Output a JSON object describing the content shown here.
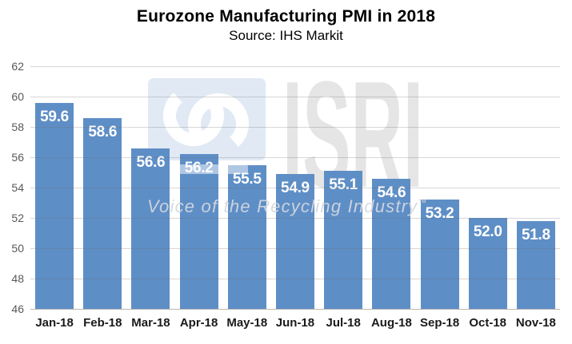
{
  "title": "Eurozone Manufacturing PMI in 2018",
  "subtitle": "Source: IHS Markit",
  "chart_data": {
    "type": "bar",
    "title": "Eurozone Manufacturing PMI in 2018",
    "subtitle": "Source: IHS Markit",
    "categories": [
      "Jan-18",
      "Feb-18",
      "Mar-18",
      "Apr-18",
      "May-18",
      "Jun-18",
      "Jul-18",
      "Aug-18",
      "Sep-18",
      "Oct-18",
      "Nov-18"
    ],
    "values": [
      59.6,
      58.6,
      56.6,
      56.2,
      55.5,
      54.9,
      55.1,
      54.6,
      53.2,
      52.0,
      51.8
    ],
    "data_labels": [
      "59.6",
      "58.6",
      "56.6",
      "56.2",
      "55.5",
      "54.9",
      "55.1",
      "54.6",
      "53.2",
      "52.0",
      "51.8"
    ],
    "xlabel": "",
    "ylabel": "",
    "ylim": [
      46,
      62
    ],
    "yticks": [
      46,
      48,
      50,
      52,
      54,
      56,
      58,
      60,
      62
    ],
    "grid": true,
    "legend": false,
    "bar_color": "#5E8EC6",
    "value_label_color": "#FFFFFF"
  },
  "watermark": {
    "logo_letters": "ISRI",
    "tagline": "Voice of the Recycling Industry",
    "trademark_symbol": "™",
    "logo_glyph": "interlocking-rings-icon",
    "square_color": "#DDE7F3",
    "letters_color": "#E5E5E5"
  },
  "colors": {
    "background": "#FFFFFF",
    "gridline": "#D9D9D9",
    "axis_line": "#BFBFBF",
    "y_tick_label": "#595959",
    "x_tick_label": "#1A1A1A",
    "title": "#000000"
  }
}
